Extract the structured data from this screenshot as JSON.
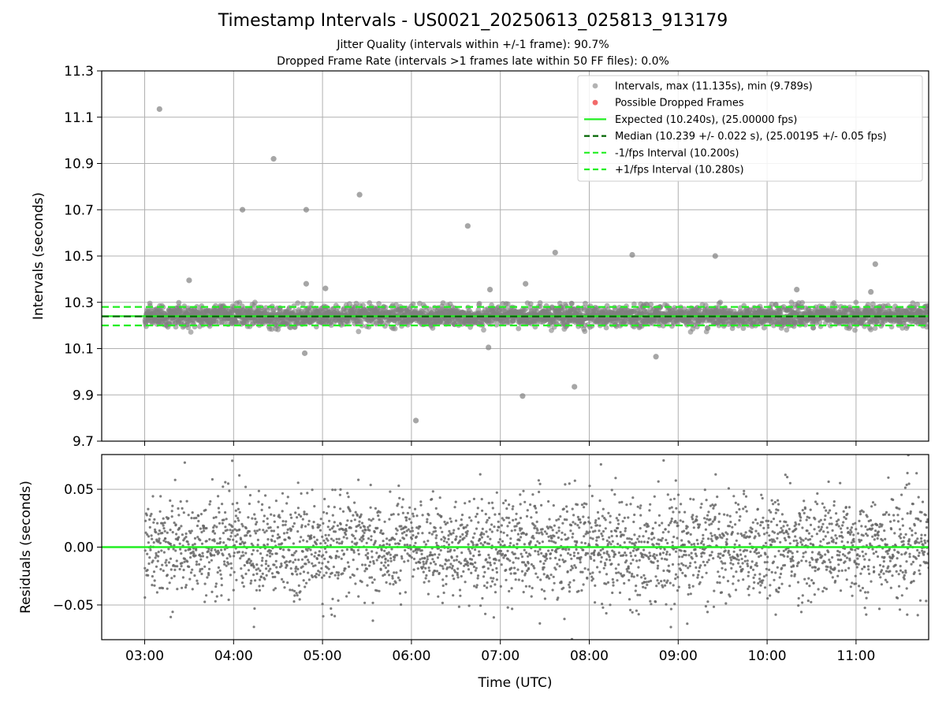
{
  "title": "Timestamp Intervals - US0021_20250613_025813_913179",
  "subtitle_lines": [
    "Jitter Quality (intervals within +/-1 frame): 90.7%",
    "Dropped Frame Rate (intervals >1 frames late within 50 FF files): 0.0%"
  ],
  "colors": {
    "points": "#808080",
    "dropped": "#f05050",
    "expected": "#22ee22",
    "median": "#006400",
    "bounds": "#22ee22",
    "grid": "#b0b0b0"
  },
  "chart_data": [
    {
      "type": "scatter",
      "panel": "intervals",
      "xlabel": "",
      "ylabel": "Intervals (seconds)",
      "xlim": [
        "02:31",
        "11:49"
      ],
      "ylim": [
        9.7,
        11.3
      ],
      "y_ticks": [
        "9.7",
        "9.9",
        "10.1",
        "10.3",
        "10.5",
        "10.7",
        "10.9",
        "11.1",
        "11.3"
      ],
      "grid": true,
      "legend_position": "top-right",
      "bulk": {
        "x_range": [
          "03:00",
          "11:49"
        ],
        "count": 3100,
        "center": 10.24,
        "spread": 0.022
      },
      "highlighted_points": [
        {
          "x": "03:10",
          "y": 11.135
        },
        {
          "x": "04:06",
          "y": 10.7
        },
        {
          "x": "04:27",
          "y": 10.92
        },
        {
          "x": "04:49",
          "y": 10.7
        },
        {
          "x": "05:25",
          "y": 10.765
        },
        {
          "x": "06:38",
          "y": 10.63
        },
        {
          "x": "07:37",
          "y": 10.515
        },
        {
          "x": "08:29",
          "y": 10.505
        },
        {
          "x": "09:25",
          "y": 10.5
        },
        {
          "x": "11:13",
          "y": 10.465
        },
        {
          "x": "03:30",
          "y": 10.395
        },
        {
          "x": "04:49",
          "y": 10.38
        },
        {
          "x": "05:02",
          "y": 10.36
        },
        {
          "x": "06:53",
          "y": 10.355
        },
        {
          "x": "07:17",
          "y": 10.38
        },
        {
          "x": "10:20",
          "y": 10.355
        },
        {
          "x": "11:10",
          "y": 10.345
        },
        {
          "x": "04:48",
          "y": 10.08
        },
        {
          "x": "06:52",
          "y": 10.105
        },
        {
          "x": "08:45",
          "y": 10.065
        },
        {
          "x": "07:50",
          "y": 9.935
        },
        {
          "x": "07:15",
          "y": 9.895
        },
        {
          "x": "06:03",
          "y": 9.789
        }
      ],
      "reference_lines": [
        {
          "kind": "expected",
          "y": 10.24
        },
        {
          "kind": "median",
          "y": 10.239
        },
        {
          "kind": "lower",
          "y": 10.2
        },
        {
          "kind": "upper",
          "y": 10.28
        }
      ],
      "legend": [
        {
          "kind": "scatter",
          "label": "Intervals, max (11.135s), min (9.789s)"
        },
        {
          "kind": "dropped",
          "label": "Possible Dropped Frames"
        },
        {
          "kind": "expected",
          "label": "Expected (10.240s), (25.00000 fps)"
        },
        {
          "kind": "median",
          "label": "Median (10.239 +/- 0.022 s), (25.00195 +/- 0.05 fps)"
        },
        {
          "kind": "lower",
          "label": "-1/fps Interval (10.200s)"
        },
        {
          "kind": "upper",
          "label": "+1/fps Interval (10.280s)"
        }
      ]
    },
    {
      "type": "scatter",
      "panel": "residuals",
      "xlabel": "Time (UTC)",
      "ylabel": "Residuals (seconds)",
      "xlim": [
        "02:31",
        "11:49"
      ],
      "ylim": [
        -0.08,
        0.08
      ],
      "y_ticks": [
        {
          "value": -0.05,
          "label": "−0.05"
        },
        {
          "value": 0,
          "label": "0.00"
        },
        {
          "value": 0.05,
          "label": "0.05"
        }
      ],
      "x_ticks": [
        "03:00",
        "04:00",
        "05:00",
        "06:00",
        "07:00",
        "08:00",
        "09:00",
        "10:00",
        "11:00"
      ],
      "grid": true,
      "zero_line": 0,
      "bulk": {
        "x_range": [
          "03:00",
          "11:49"
        ],
        "count": 3100,
        "center": 0,
        "spread": 0.022
      }
    }
  ]
}
